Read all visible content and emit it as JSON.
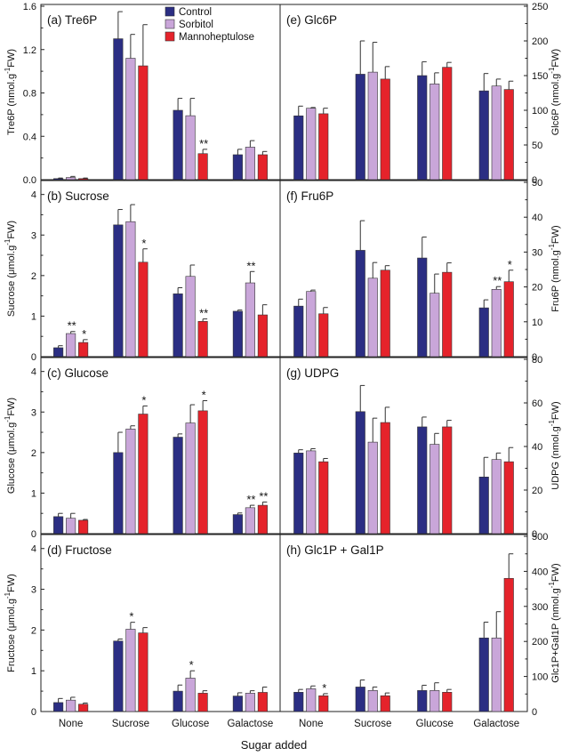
{
  "colors": {
    "Control": "#2b2e83",
    "Sorbitol": "#c9a6d9",
    "Mannoheptulose": "#e5232b",
    "axis": "#222222"
  },
  "legend": [
    {
      "name": "Control",
      "color_key": "Control"
    },
    {
      "name": "Sorbitol",
      "color_key": "Sorbitol"
    },
    {
      "name": "Mannoheptulose",
      "color_key": "Mannoheptulose"
    }
  ],
  "xlabel": "Sugar added",
  "categories": [
    "None",
    "Sucrose",
    "Glucose",
    "Galactose"
  ],
  "chart_data": [
    {
      "type": "bar",
      "panel": "a",
      "title": "(a) Tre6P",
      "ylabel": "Tre6P (nmol.g-1FW)",
      "ylim": [
        0,
        1.6
      ],
      "yticks": [
        "0.0",
        "0.4",
        "0.8",
        "1.2",
        "1.6"
      ],
      "categories": [
        "None",
        "Sucrose",
        "Glucose",
        "Galactose"
      ],
      "series": [
        {
          "name": "Control",
          "values": [
            0.01,
            1.3,
            0.64,
            0.23
          ],
          "errors": [
            0.005,
            0.25,
            0.11,
            0.05
          ]
        },
        {
          "name": "Sorbitol",
          "values": [
            0.02,
            1.12,
            0.59,
            0.3
          ],
          "errors": [
            0.01,
            0.22,
            0.16,
            0.06
          ]
        },
        {
          "name": "Mannoheptulose",
          "values": [
            0.01,
            1.05,
            0.24,
            0.23
          ],
          "errors": [
            0.005,
            0.38,
            0.04,
            0.03
          ]
        }
      ],
      "annotations": [
        {
          "category": "Glucose",
          "series": "Mannoheptulose",
          "text": "**"
        }
      ]
    },
    {
      "type": "bar",
      "panel": "b",
      "title": "(b) Sucrose",
      "ylabel": "Sucrose (μmol.g-1FW)",
      "ylim": [
        0,
        4.3
      ],
      "yticks": [
        "0",
        "1",
        "2",
        "3",
        "4"
      ],
      "categories": [
        "None",
        "Sucrose",
        "Glucose",
        "Galactose"
      ],
      "series": [
        {
          "name": "Control",
          "values": [
            0.22,
            3.25,
            1.55,
            1.12
          ],
          "errors": [
            0.05,
            0.38,
            0.15,
            0.03
          ]
        },
        {
          "name": "Sorbitol",
          "values": [
            0.57,
            3.33,
            1.98,
            1.82
          ],
          "errors": [
            0.05,
            0.42,
            0.28,
            0.28
          ]
        },
        {
          "name": "Mannoheptulose",
          "values": [
            0.35,
            2.33,
            0.87,
            1.03
          ],
          "errors": [
            0.07,
            0.33,
            0.06,
            0.25
          ]
        }
      ],
      "annotations": [
        {
          "category": "None",
          "series": "Sorbitol",
          "text": "**"
        },
        {
          "category": "None",
          "series": "Mannoheptulose",
          "text": "*"
        },
        {
          "category": "Sucrose",
          "series": "Mannoheptulose",
          "text": "*"
        },
        {
          "category": "Glucose",
          "series": "Mannoheptulose",
          "text": "**"
        },
        {
          "category": "Galactose",
          "series": "Sorbitol",
          "text": "**"
        }
      ]
    },
    {
      "type": "bar",
      "panel": "c",
      "title": "(c) Glucose",
      "ylabel": "Glucose (μmol.g-1FW)",
      "ylim": [
        0,
        4.3
      ],
      "yticks": [
        "0",
        "1",
        "2",
        "3",
        "4"
      ],
      "categories": [
        "None",
        "Sucrose",
        "Glucose",
        "Galactose"
      ],
      "series": [
        {
          "name": "Control",
          "values": [
            0.42,
            2.0,
            2.38,
            0.47
          ],
          "errors": [
            0.08,
            0.5,
            0.08,
            0.04
          ]
        },
        {
          "name": "Sorbitol",
          "values": [
            0.38,
            2.58,
            2.73,
            0.64
          ],
          "errors": [
            0.12,
            0.08,
            0.45,
            0.06
          ]
        },
        {
          "name": "Mannoheptulose",
          "values": [
            0.33,
            2.95,
            3.03,
            0.7
          ],
          "errors": [
            0.02,
            0.2,
            0.25,
            0.08
          ]
        }
      ],
      "annotations": [
        {
          "category": "Sucrose",
          "series": "Mannoheptulose",
          "text": "*"
        },
        {
          "category": "Glucose",
          "series": "Mannoheptulose",
          "text": "*"
        },
        {
          "category": "Galactose",
          "series": "Sorbitol",
          "text": "**"
        },
        {
          "category": "Galactose",
          "series": "Mannoheptulose",
          "text": "**"
        }
      ]
    },
    {
      "type": "bar",
      "panel": "d",
      "title": "(d) Fructose",
      "ylabel": "Fructose (μmol.g-1FW)",
      "ylim": [
        0,
        4.3
      ],
      "yticks": [
        "0",
        "1",
        "2",
        "3",
        "4"
      ],
      "categories": [
        "None",
        "Sucrose",
        "Glucose",
        "Galactose"
      ],
      "series": [
        {
          "name": "Control",
          "values": [
            0.22,
            1.73,
            0.5,
            0.38
          ],
          "errors": [
            0.1,
            0.05,
            0.15,
            0.08
          ]
        },
        {
          "name": "Sorbitol",
          "values": [
            0.28,
            2.02,
            0.82,
            0.45
          ],
          "errors": [
            0.07,
            0.17,
            0.18,
            0.06
          ]
        },
        {
          "name": "Mannoheptulose",
          "values": [
            0.18,
            1.93,
            0.45,
            0.47
          ],
          "errors": [
            0.03,
            0.13,
            0.06,
            0.13
          ]
        }
      ],
      "annotations": [
        {
          "category": "Sucrose",
          "series": "Sorbitol",
          "text": "*"
        },
        {
          "category": "Glucose",
          "series": "Sorbitol",
          "text": "*"
        }
      ]
    },
    {
      "type": "bar",
      "panel": "e",
      "title": "(e) Glc6P",
      "ylabel": "Glc6P (nmol.g-1FW)",
      "ylim": [
        0,
        250
      ],
      "yticks": [
        "0",
        "50",
        "100",
        "150",
        "200",
        "250"
      ],
      "categories": [
        "None",
        "Sucrose",
        "Glucose",
        "Galactose"
      ],
      "series": [
        {
          "name": "Control",
          "values": [
            92,
            152,
            150,
            128
          ],
          "errors": [
            14,
            48,
            20,
            25
          ]
        },
        {
          "name": "Sorbitol",
          "values": [
            103,
            155,
            138,
            135
          ],
          "errors": [
            1,
            43,
            16,
            10
          ]
        },
        {
          "name": "Mannoheptulose",
          "values": [
            95,
            145,
            162,
            130
          ],
          "errors": [
            8,
            18,
            7,
            12
          ]
        }
      ],
      "annotations": []
    },
    {
      "type": "bar",
      "panel": "f",
      "title": "(f) Fru6P",
      "ylabel": "Fru6P (nmol.g-1FW)",
      "ylim": [
        0,
        50
      ],
      "yticks": [
        "0",
        "10",
        "20",
        "30",
        "40",
        "50"
      ],
      "categories": [
        "None",
        "Sucrose",
        "Glucose",
        "Galactose"
      ],
      "series": [
        {
          "name": "Control",
          "values": [
            14.5,
            30.5,
            28.3,
            14
          ],
          "errors": [
            2,
            8.5,
            6,
            2.3
          ]
        },
        {
          "name": "Sorbitol",
          "values": [
            18.7,
            22.5,
            18.2,
            19.3
          ],
          "errors": [
            0.4,
            4.5,
            5.5,
            0.8
          ]
        },
        {
          "name": "Mannoheptulose",
          "values": [
            12.3,
            24.8,
            24.2,
            21.5
          ],
          "errors": [
            1.8,
            1.3,
            2.7,
            3.3
          ]
        }
      ],
      "annotations": [
        {
          "category": "Galactose",
          "series": "Sorbitol",
          "text": "**"
        },
        {
          "category": "Galactose",
          "series": "Mannoheptulose",
          "text": "*"
        }
      ]
    },
    {
      "type": "bar",
      "panel": "g",
      "title": "(g) UDPG",
      "ylabel": "UDPG (nmol.g-1FW)",
      "ylim": [
        0,
        80
      ],
      "yticks": [
        "0",
        "20",
        "40",
        "60",
        "80"
      ],
      "categories": [
        "None",
        "Sucrose",
        "Glucose",
        "Galactose"
      ],
      "series": [
        {
          "name": "Control",
          "values": [
            37,
            56,
            49,
            26
          ],
          "errors": [
            1.5,
            12,
            4.5,
            9
          ]
        },
        {
          "name": "Sorbitol",
          "values": [
            38,
            42,
            41,
            34
          ],
          "errors": [
            1,
            11,
            5,
            3
          ]
        },
        {
          "name": "Mannoheptulose",
          "values": [
            33,
            51,
            49,
            33
          ],
          "errors": [
            1.5,
            7,
            3,
            6.5
          ]
        }
      ],
      "annotations": []
    },
    {
      "type": "bar",
      "panel": "h",
      "title": "(h) Glc1P + Gal1P",
      "ylabel": "Glc1P+Gal1P (nmol.g-1FW)",
      "ylim": [
        0,
        500
      ],
      "yticks": [
        "0",
        "100",
        "200",
        "300",
        "400",
        "500"
      ],
      "categories": [
        "None",
        "Sucrose",
        "Glucose",
        "Galactose"
      ],
      "series": [
        {
          "name": "Control",
          "values": [
            55,
            70,
            60,
            210
          ],
          "errors": [
            8,
            20,
            15,
            45
          ]
        },
        {
          "name": "Sorbitol",
          "values": [
            65,
            60,
            60,
            210
          ],
          "errors": [
            8,
            10,
            22,
            75
          ]
        },
        {
          "name": "Mannoheptulose",
          "values": [
            45,
            45,
            55,
            380
          ],
          "errors": [
            6,
            8,
            8,
            70
          ]
        }
      ],
      "annotations": [
        {
          "category": "None",
          "series": "Mannoheptulose",
          "text": "*"
        }
      ]
    }
  ]
}
